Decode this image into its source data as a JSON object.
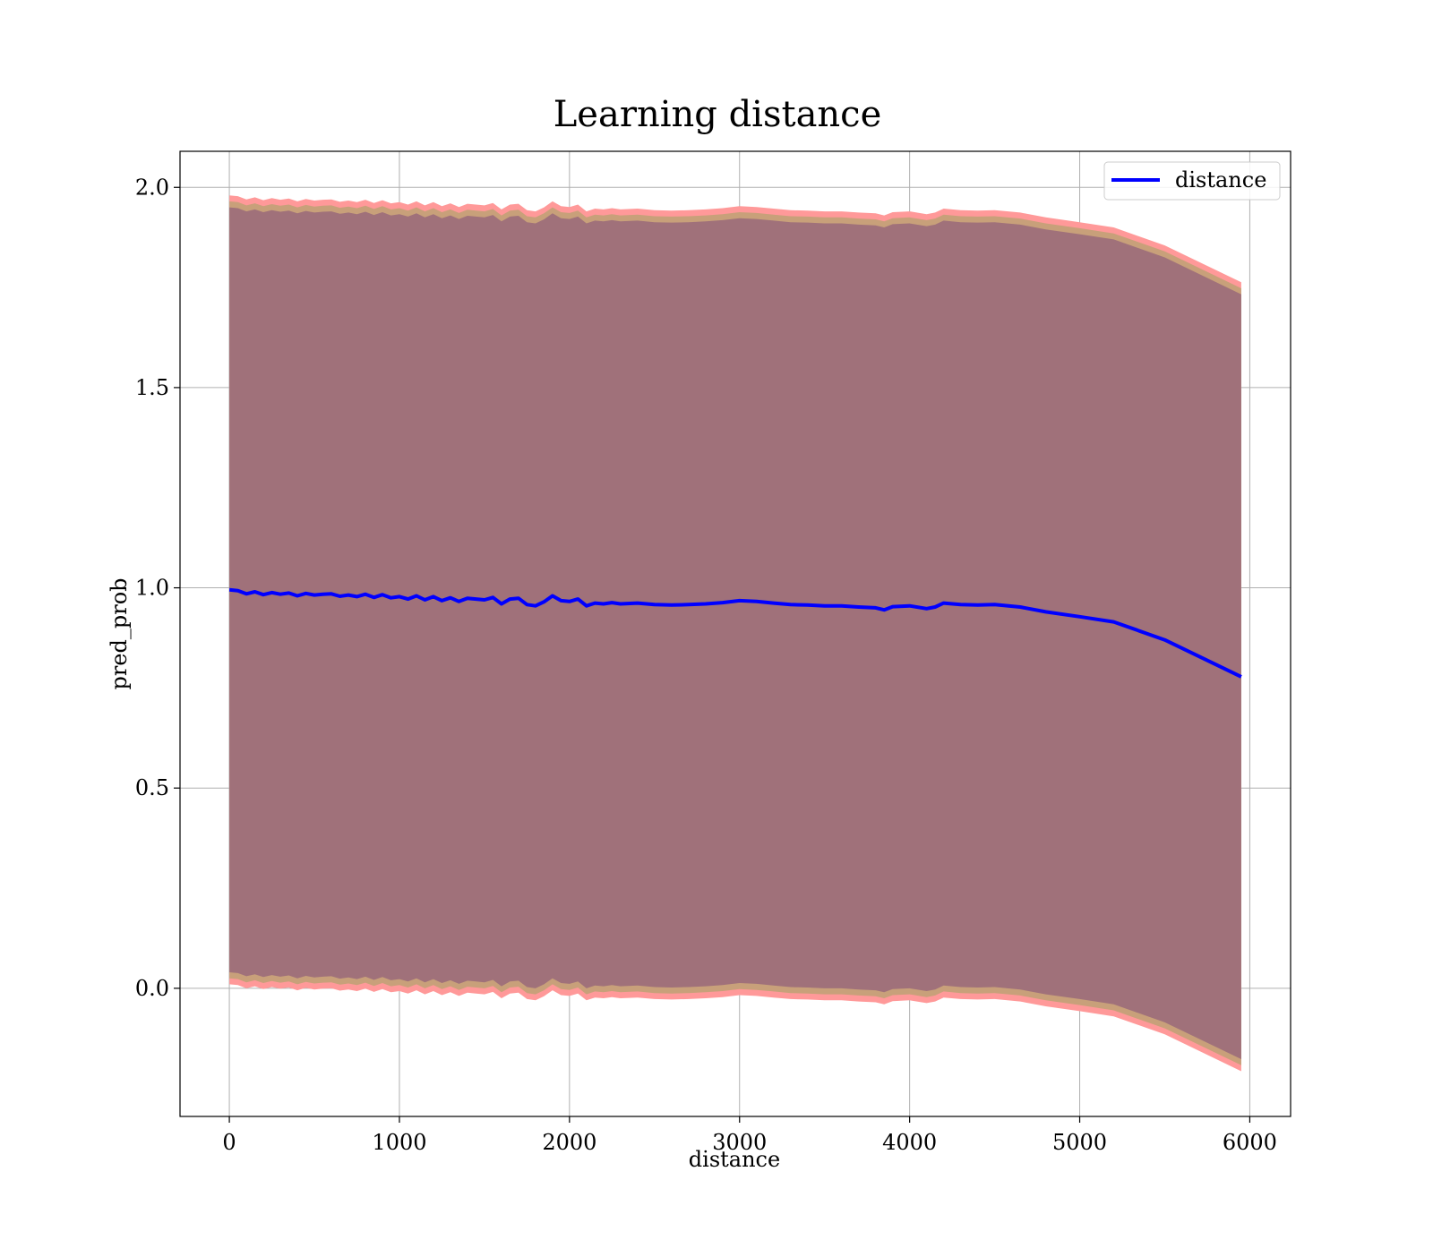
{
  "chart_data": {
    "type": "line",
    "title": "Learning distance",
    "xlabel": "distance",
    "ylabel": "pred_prob",
    "xlim": [
      -290,
      6240
    ],
    "ylim": [
      -0.32,
      2.09
    ],
    "xticks": [
      0,
      1000,
      2000,
      3000,
      4000,
      5000,
      6000
    ],
    "yticks": [
      0.0,
      0.5,
      1.0,
      1.5,
      2.0
    ],
    "xtick_labels": [
      "0",
      "1000",
      "2000",
      "3000",
      "4000",
      "5000",
      "6000"
    ],
    "ytick_labels": [
      "0.0",
      "0.5",
      "1.0",
      "1.5",
      "2.0"
    ],
    "grid": true,
    "legend": {
      "position": "upper right",
      "entries": [
        "distance"
      ]
    },
    "colors": {
      "line": "#0000ff",
      "band_outer": "#ff9999",
      "band_middle": "#c8a07a",
      "band_inner": "#a0717a",
      "grid": "#b0b0b0"
    },
    "x": [
      0,
      50,
      100,
      150,
      200,
      250,
      300,
      350,
      400,
      450,
      500,
      550,
      600,
      650,
      700,
      750,
      800,
      850,
      900,
      950,
      1000,
      1050,
      1100,
      1150,
      1200,
      1250,
      1300,
      1350,
      1400,
      1450,
      1500,
      1550,
      1600,
      1650,
      1700,
      1750,
      1800,
      1850,
      1900,
      1950,
      2000,
      2050,
      2100,
      2150,
      2200,
      2250,
      2300,
      2400,
      2500,
      2600,
      2700,
      2800,
      2900,
      3000,
      3100,
      3200,
      3300,
      3400,
      3500,
      3600,
      3700,
      3800,
      3850,
      3900,
      4000,
      4100,
      4150,
      4200,
      4300,
      4400,
      4500,
      4650,
      4800,
      5000,
      5200,
      5500,
      5950
    ],
    "series": [
      {
        "name": "distance",
        "y": [
          0.995,
          0.993,
          0.985,
          0.99,
          0.983,
          0.988,
          0.984,
          0.987,
          0.98,
          0.986,
          0.982,
          0.984,
          0.985,
          0.979,
          0.982,
          0.978,
          0.984,
          0.976,
          0.983,
          0.975,
          0.978,
          0.972,
          0.98,
          0.97,
          0.978,
          0.968,
          0.975,
          0.966,
          0.974,
          0.972,
          0.97,
          0.976,
          0.96,
          0.972,
          0.974,
          0.958,
          0.955,
          0.965,
          0.98,
          0.968,
          0.966,
          0.972,
          0.955,
          0.962,
          0.96,
          0.963,
          0.96,
          0.962,
          0.958,
          0.957,
          0.958,
          0.96,
          0.963,
          0.968,
          0.966,
          0.962,
          0.958,
          0.957,
          0.955,
          0.955,
          0.952,
          0.95,
          0.945,
          0.953,
          0.955,
          0.948,
          0.952,
          0.962,
          0.958,
          0.957,
          0.958,
          0.952,
          0.94,
          0.928,
          0.915,
          0.87,
          0.778
        ]
      }
    ],
    "band_halfwidths": [
      0.985,
      0.97,
      0.955
    ]
  }
}
